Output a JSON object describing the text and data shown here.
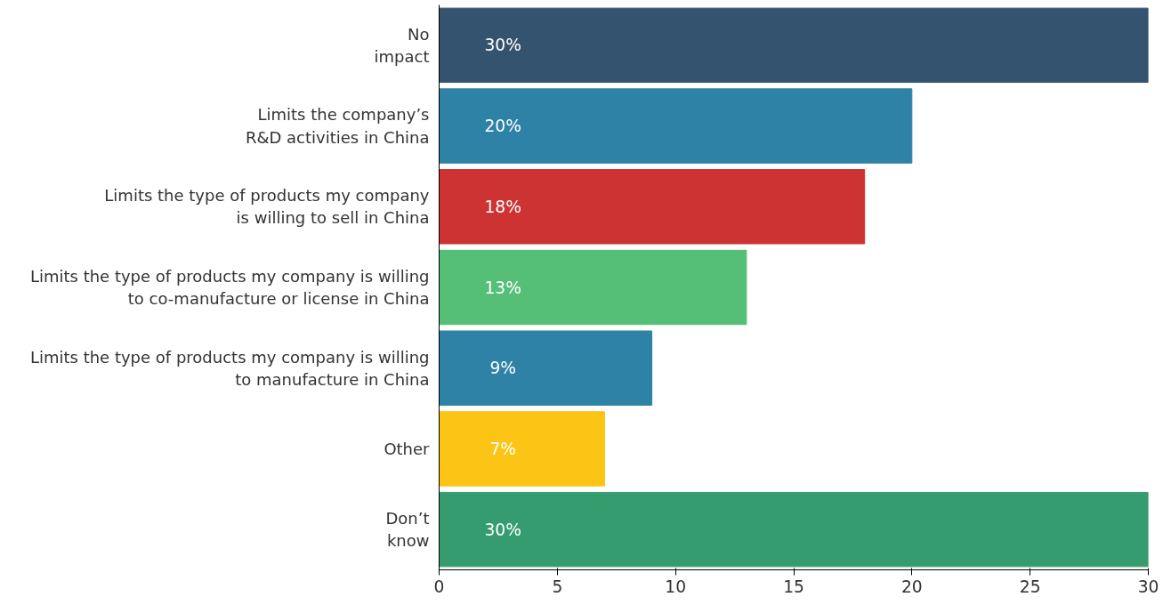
{
  "chart_data": {
    "type": "bar",
    "orientation": "horizontal",
    "categories": [
      "No\nimpact",
      "Limits the company’s\nR&D activities in China",
      "Limits the type of products my company\nis willing to sell in China",
      "Limits the type of products my company is willing\nto co-manufacture or license in China",
      "Limits the type of products my company is willing\nto manufacture in China",
      "Other",
      "Don’t\nknow"
    ],
    "values": [
      30,
      20,
      18,
      13,
      9,
      7,
      30
    ],
    "colors": [
      "#34536f",
      "#2e82a5",
      "#cd3333",
      "#55bf77",
      "#2e82a5",
      "#fcc515",
      "#359c6f"
    ],
    "value_labels": [
      "30%",
      "20%",
      "18%",
      "13%",
      "9%",
      "7%",
      "30%"
    ],
    "xlim": [
      0,
      30
    ],
    "xticks": [
      0,
      5,
      10,
      15,
      20,
      25,
      30
    ],
    "grid": false
  }
}
